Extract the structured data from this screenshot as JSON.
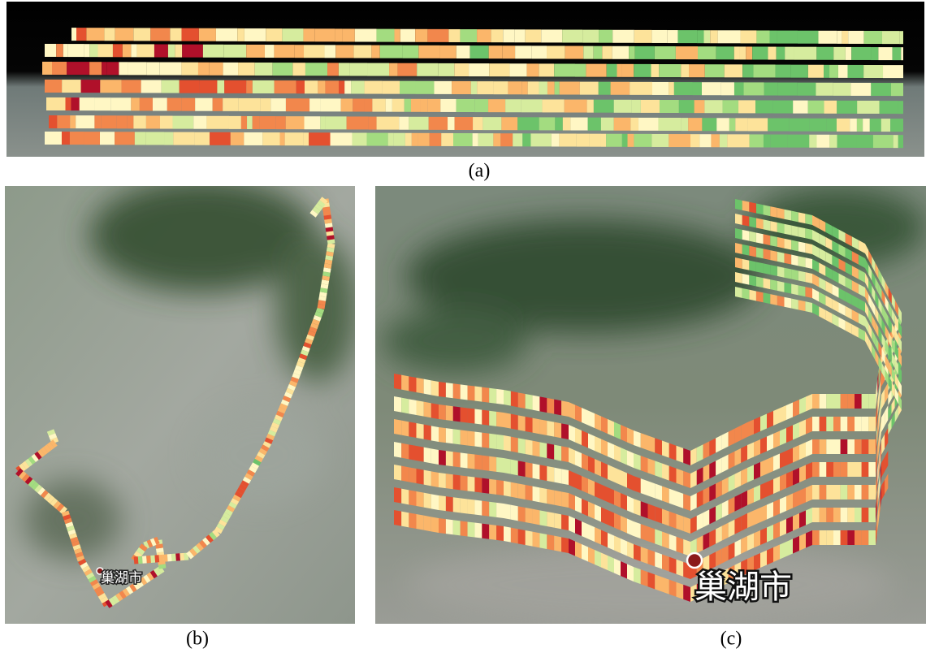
{
  "panels": [
    {
      "caption": "(a)"
    },
    {
      "caption": "(b)",
      "place_label": "巢湖市"
    },
    {
      "caption": "(c)",
      "place_label": "巢湖市"
    }
  ]
}
